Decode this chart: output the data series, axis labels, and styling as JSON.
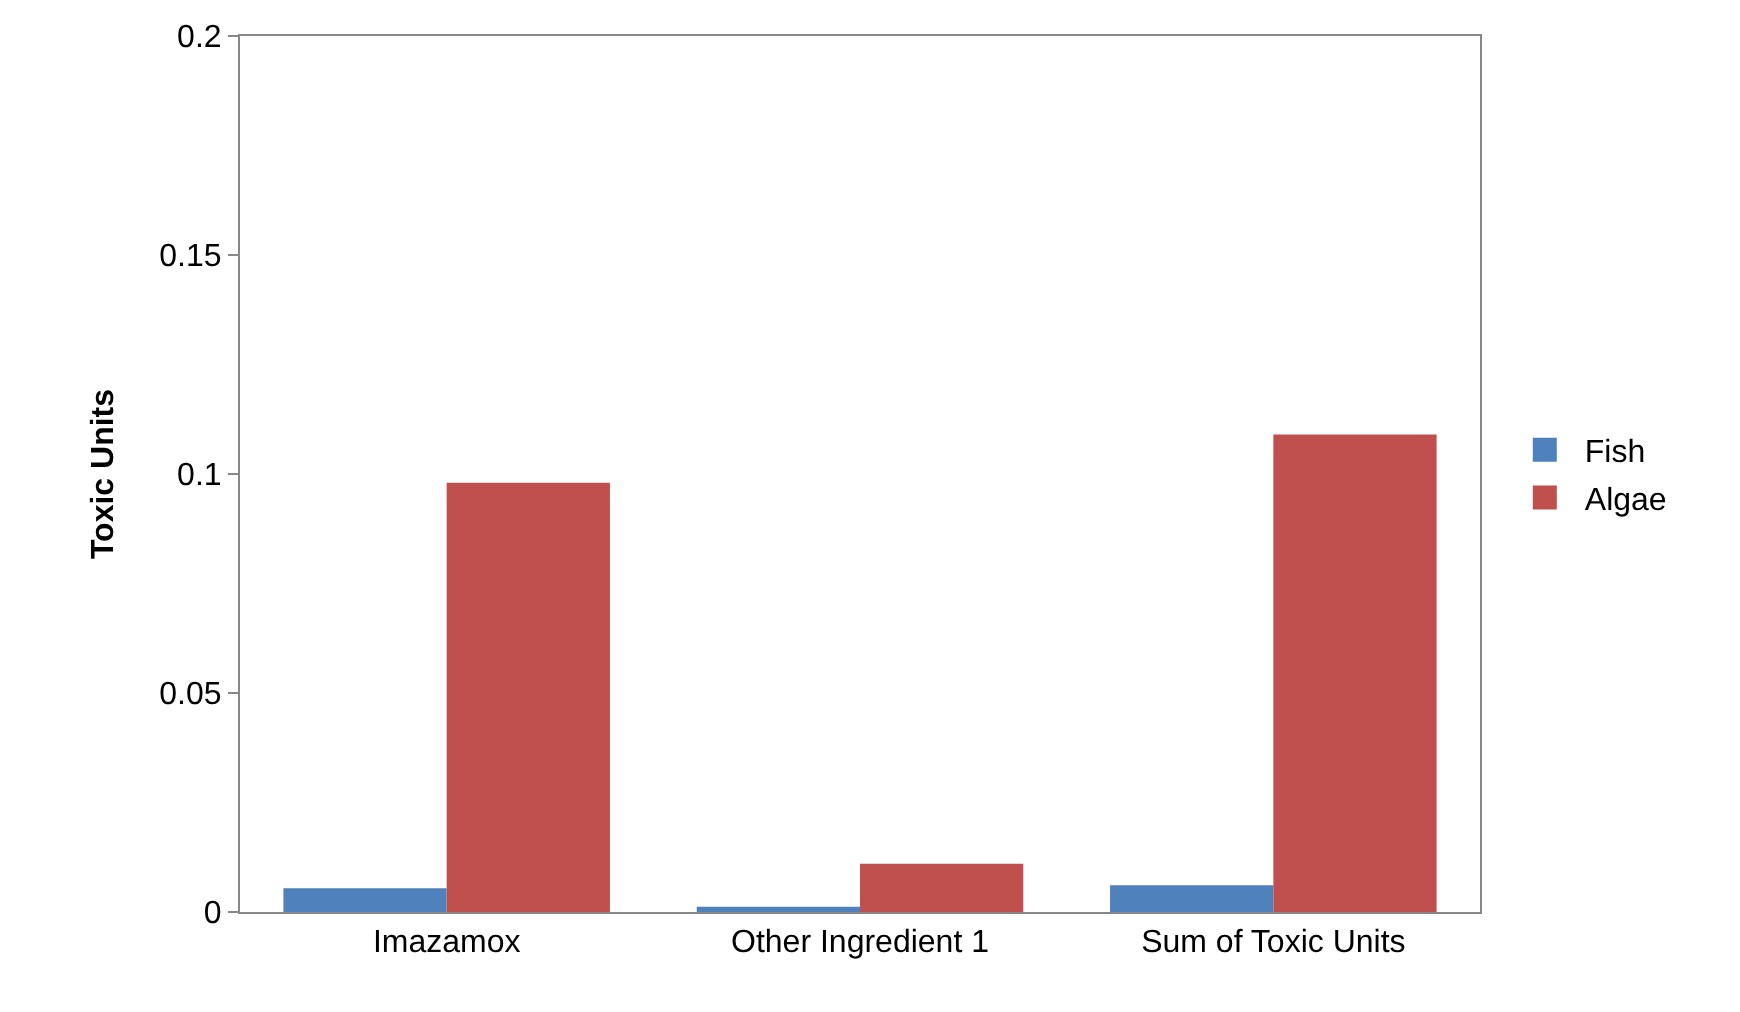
{
  "chart_data": {
    "type": "bar",
    "ylabel": "Toxic Units",
    "categories": [
      "Imazamox",
      "Other Ingredient 1",
      "Sum of Toxic Units"
    ],
    "series": [
      {
        "name": "Fish",
        "color": "#4f81bd",
        "values": [
          0.0054,
          0.0012,
          0.0061
        ]
      },
      {
        "name": "Algae",
        "color": "#c0504d",
        "values": [
          0.098,
          0.011,
          0.109
        ]
      }
    ],
    "ylim": [
      0,
      0.2
    ],
    "yticks": [
      0,
      0.05,
      0.1,
      0.15,
      0.2
    ],
    "grid": false,
    "legend": "right"
  }
}
